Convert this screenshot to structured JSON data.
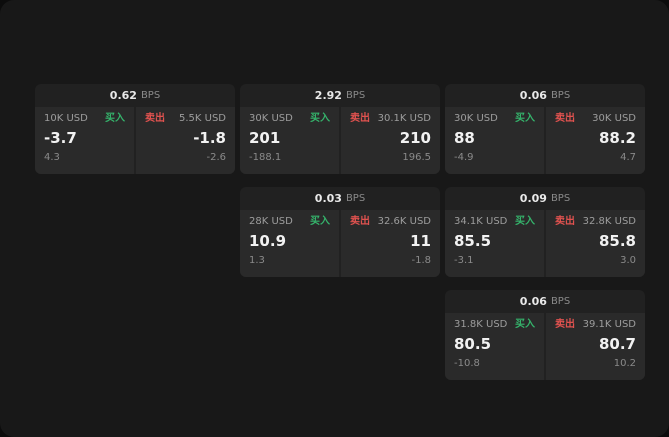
{
  "labels": {
    "buy": "买入",
    "sell": "卖出",
    "bps": "BPS"
  },
  "colors": {
    "buy": "#35b36b",
    "sell": "#e0524f",
    "background": "#181818",
    "card": "#212121",
    "panel": "#2a2a2a"
  },
  "cards": [
    {
      "bps": "0.62",
      "buy": {
        "amount": "10K USD",
        "price": "-3.7",
        "sub": "4.3"
      },
      "sell": {
        "amount": "5.5K USD",
        "price": "-1.8",
        "sub": "-2.6"
      }
    },
    {
      "bps": "2.92",
      "buy": {
        "amount": "30K USD",
        "price": "201",
        "sub": "-188.1"
      },
      "sell": {
        "amount": "30.1K USD",
        "price": "210",
        "sub": "196.5"
      }
    },
    {
      "bps": "0.06",
      "buy": {
        "amount": "30K USD",
        "price": "88",
        "sub": "-4.9"
      },
      "sell": {
        "amount": "30K USD",
        "price": "88.2",
        "sub": "4.7"
      }
    },
    {
      "bps": "0.03",
      "buy": {
        "amount": "28K USD",
        "price": "10.9",
        "sub": "1.3"
      },
      "sell": {
        "amount": "32.6K USD",
        "price": "11",
        "sub": "-1.8"
      }
    },
    {
      "bps": "0.09",
      "buy": {
        "amount": "34.1K USD",
        "price": "85.5",
        "sub": "-3.1"
      },
      "sell": {
        "amount": "32.8K USD",
        "price": "85.8",
        "sub": "3.0"
      }
    },
    {
      "bps": "0.06",
      "buy": {
        "amount": "31.8K USD",
        "price": "80.5",
        "sub": "-10.8"
      },
      "sell": {
        "amount": "39.1K USD",
        "price": "80.7",
        "sub": "10.2"
      }
    }
  ]
}
